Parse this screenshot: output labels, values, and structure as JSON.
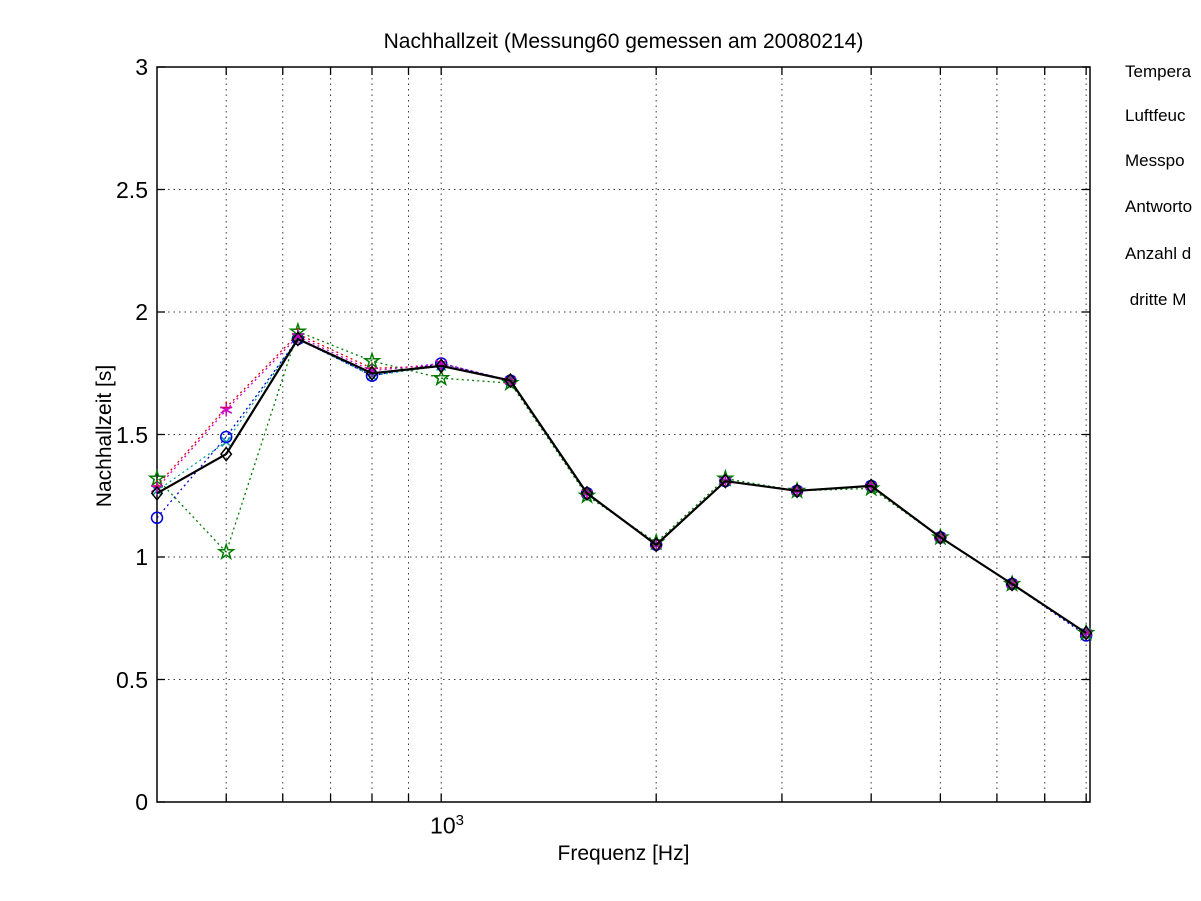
{
  "info_panel": {
    "lines": [
      "Tempera",
      "Luftfeuc",
      "Messpo",
      "Antworto",
      "Anzahl d",
      " dritte M"
    ]
  },
  "chart_data": {
    "type": "line",
    "title": "Nachhallzeit (Messung60 gemessen am 20080214)",
    "xlabel": "Frequenz [Hz]",
    "ylabel": "Nachhallzeit [s]",
    "x_scale": "log",
    "xlim": [
      400,
      8100
    ],
    "ylim": [
      0,
      3
    ],
    "grid": true,
    "legend_position": "none",
    "y_ticks": [
      "0",
      "0.5",
      "1",
      "1.5",
      "2",
      "2.5",
      "3"
    ],
    "y_gridlines": [
      0.5,
      1,
      1.5,
      2,
      2.5
    ],
    "x_gridlines": [
      500,
      600,
      700,
      800,
      900,
      1000,
      2000,
      3000,
      4000,
      5000,
      6000,
      7000,
      8000
    ],
    "x_tick_label": {
      "base": "10",
      "exp": "3",
      "value": 1000
    },
    "categories": [
      400,
      500,
      630,
      800,
      1000,
      1250,
      1600,
      2000,
      2500,
      3150,
      4000,
      5000,
      6300,
      8000
    ],
    "series": [
      {
        "name": "red-plus-dotted",
        "marker": "plus",
        "color": "#dd0000",
        "line": "dotted",
        "values": [
          1.29,
          1.61,
          1.91,
          1.77,
          1.78,
          1.72,
          1.26,
          1.05,
          1.31,
          1.27,
          1.29,
          1.08,
          0.89,
          0.69
        ]
      },
      {
        "name": "cyan-x-dotted",
        "marker": "x",
        "color": "#009e9e",
        "line": "dotted",
        "values": [
          1.27,
          1.47,
          1.89,
          1.74,
          1.78,
          1.72,
          1.26,
          1.05,
          1.31,
          1.27,
          1.29,
          1.08,
          0.89,
          0.69
        ]
      },
      {
        "name": "blue-circle-dotted",
        "marker": "circle",
        "color": "#0000dd",
        "line": "dotted",
        "values": [
          1.16,
          1.49,
          1.89,
          1.74,
          1.79,
          1.72,
          1.26,
          1.05,
          1.31,
          1.27,
          1.29,
          1.08,
          0.89,
          0.68
        ]
      },
      {
        "name": "green-pentagram-dotted",
        "marker": "pentagram",
        "color": "#007b00",
        "line": "dotted",
        "values": [
          1.32,
          1.02,
          1.92,
          1.8,
          1.73,
          1.71,
          1.25,
          1.06,
          1.32,
          1.27,
          1.28,
          1.08,
          0.89,
          0.69
        ]
      },
      {
        "name": "magenta-asterisk-dotted",
        "marker": "asterisk",
        "color": "#cc00cc",
        "line": "dotted",
        "values": [
          1.28,
          1.6,
          1.9,
          1.76,
          1.79,
          1.72,
          1.26,
          1.05,
          1.31,
          1.27,
          1.29,
          1.08,
          0.89,
          0.69
        ]
      },
      {
        "name": "black-diamond-solid",
        "marker": "diamond",
        "color": "#000000",
        "line": "solid",
        "values": [
          1.26,
          1.42,
          1.89,
          1.75,
          1.78,
          1.72,
          1.26,
          1.05,
          1.31,
          1.27,
          1.29,
          1.08,
          0.89,
          0.69
        ]
      }
    ]
  }
}
